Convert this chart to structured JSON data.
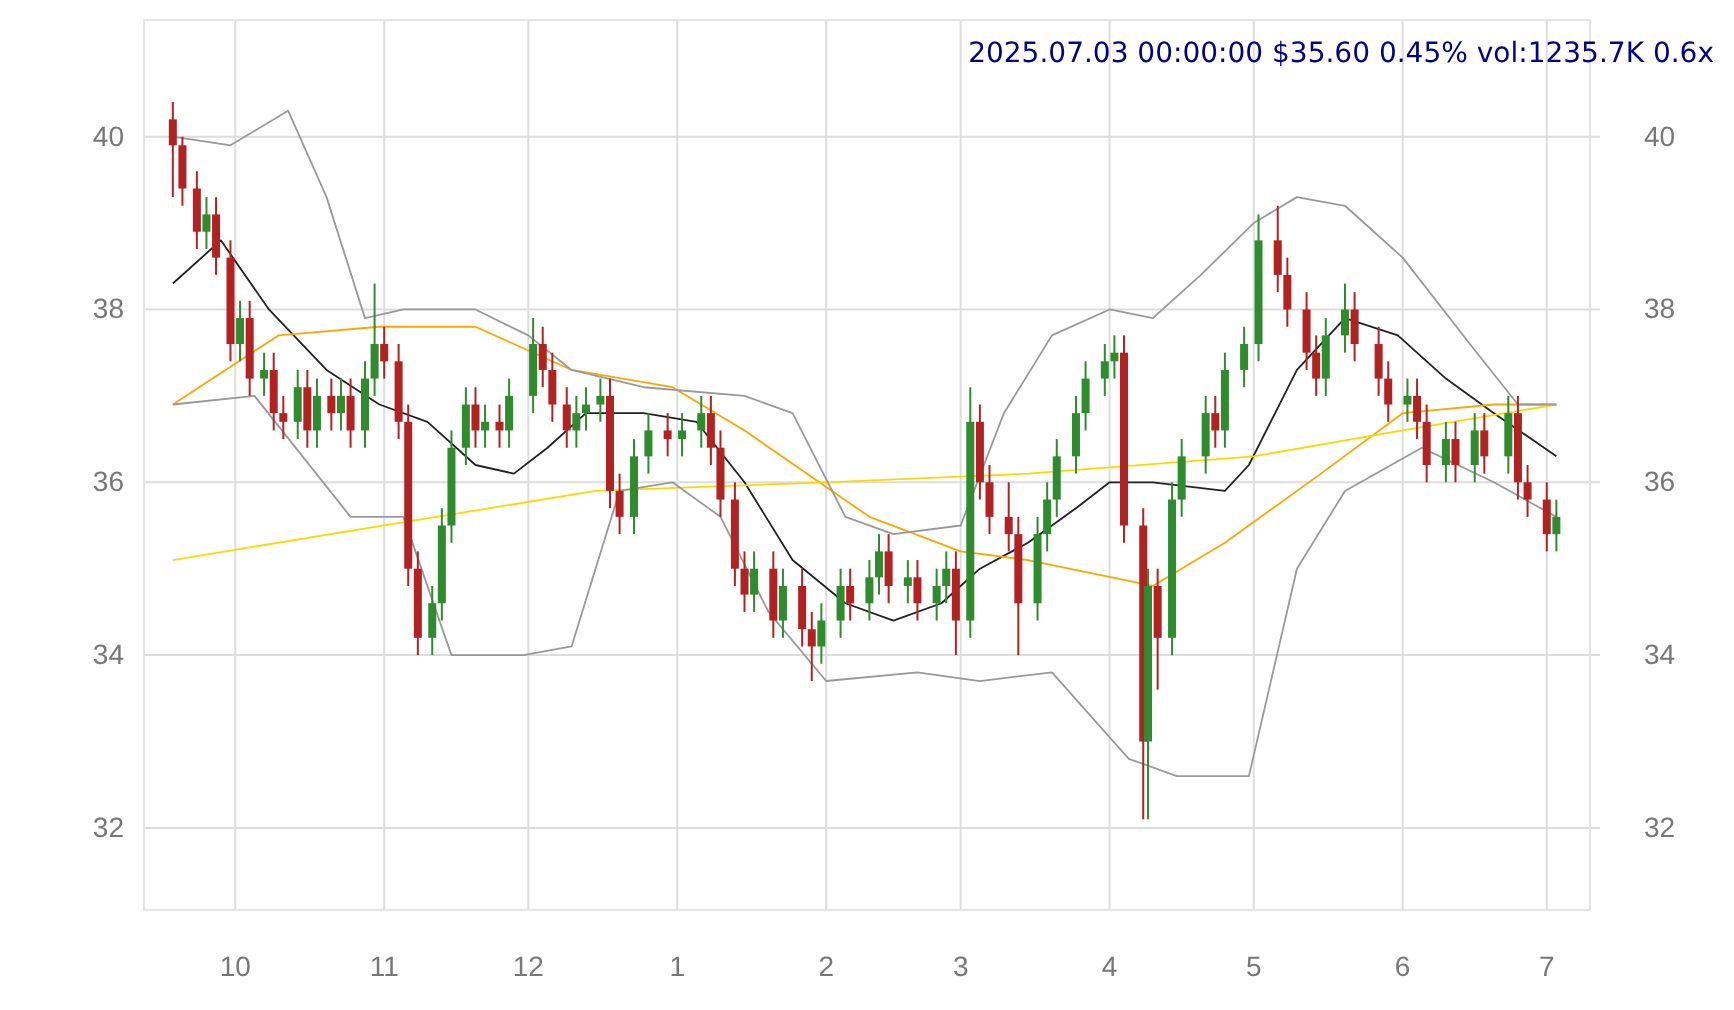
{
  "chart_data": {
    "type": "candlestick",
    "title": "2025.07.03 00:00:00 $35.60 0.45% vol:1235.7K 0.6x",
    "xlim": [
      "2024-09-12",
      "2025-07-10"
    ],
    "xticks": [
      {
        "value": "2024-10-01",
        "label": "10"
      },
      {
        "value": "2024-11-01",
        "label": "11"
      },
      {
        "value": "2024-12-01",
        "label": "12"
      },
      {
        "value": "2025-01-01",
        "label": "1"
      },
      {
        "value": "2025-02-01",
        "label": "2"
      },
      {
        "value": "2025-03-01",
        "label": "3"
      },
      {
        "value": "2025-04-01",
        "label": "4"
      },
      {
        "value": "2025-05-01",
        "label": "5"
      },
      {
        "value": "2025-06-01",
        "label": "6"
      },
      {
        "value": "2025-07-01",
        "label": "7"
      }
    ],
    "ylim": [
      31.05,
      41.35
    ],
    "yticks": [
      32,
      34,
      36,
      38,
      40
    ],
    "y2lim": [
      31.05,
      41.35
    ],
    "y2ticks": [
      32,
      34,
      36,
      38,
      40
    ],
    "grid": true,
    "series": [
      {
        "x": [
          "2024-09-18",
          "2024-09-20",
          "2024-09-23",
          "2024-09-25",
          "2024-09-27",
          "2024-09-30",
          "2024-10-02",
          "2024-10-04",
          "2024-10-07",
          "2024-10-09",
          "2024-10-11",
          "2024-10-14",
          "2024-10-16",
          "2024-10-18",
          "2024-10-21",
          "2024-10-23",
          "2024-10-25",
          "2024-10-28",
          "2024-10-30",
          "2024-11-01",
          "2024-11-04",
          "2024-11-06",
          "2024-11-08",
          "2024-11-11",
          "2024-11-13",
          "2024-11-15",
          "2024-11-18",
          "2024-11-20",
          "2024-11-22",
          "2024-11-25",
          "2024-11-27",
          "2024-12-02",
          "2024-12-04",
          "2024-12-06",
          "2024-12-09",
          "2024-12-11",
          "2024-12-13",
          "2024-12-16",
          "2024-12-18",
          "2024-12-20",
          "2024-12-23",
          "2024-12-26",
          "2024-12-30",
          "2025-01-02",
          "2025-01-06",
          "2025-01-08",
          "2025-01-10",
          "2025-01-13",
          "2025-01-15",
          "2025-01-17",
          "2025-01-21",
          "2025-01-23",
          "2025-01-27",
          "2025-01-29",
          "2025-01-31",
          "2025-02-04",
          "2025-02-06",
          "2025-02-10",
          "2025-02-12",
          "2025-02-14",
          "2025-02-18",
          "2025-02-20",
          "2025-02-24",
          "2025-02-26",
          "2025-02-28",
          "2025-03-03",
          "2025-03-05",
          "2025-03-07",
          "2025-03-11",
          "2025-03-13",
          "2025-03-17",
          "2025-03-19",
          "2025-03-21",
          "2025-03-25",
          "2025-03-27",
          "2025-03-31",
          "2025-04-02",
          "2025-04-04",
          "2025-04-08",
          "2025-04-09",
          "2025-04-11",
          "2025-04-14",
          "2025-04-16",
          "2025-04-21",
          "2025-04-23",
          "2025-04-25",
          "2025-04-29",
          "2025-05-02",
          "2025-05-06",
          "2025-05-08",
          "2025-05-12",
          "2025-05-14",
          "2025-05-16",
          "2025-05-20",
          "2025-05-22",
          "2025-05-27",
          "2025-05-29",
          "2025-06-02",
          "2025-06-04",
          "2025-06-06",
          "2025-06-10",
          "2025-06-12",
          "2025-06-16",
          "2025-06-18",
          "2025-06-23",
          "2025-06-25",
          "2025-06-27",
          "2025-07-01",
          "2025-07-03"
        ],
        "ohlc": [
          [
            40.2,
            40.4,
            39.3,
            39.9
          ],
          [
            39.9,
            40.0,
            39.2,
            39.4
          ],
          [
            39.4,
            39.6,
            38.7,
            38.9
          ],
          [
            38.9,
            39.3,
            38.7,
            39.1
          ],
          [
            39.1,
            39.3,
            38.4,
            38.6
          ],
          [
            38.6,
            38.8,
            37.4,
            37.6
          ],
          [
            37.6,
            38.1,
            37.4,
            37.9
          ],
          [
            37.9,
            38.1,
            37.0,
            37.2
          ],
          [
            37.2,
            37.5,
            37.0,
            37.3
          ],
          [
            37.3,
            37.5,
            36.6,
            36.8
          ],
          [
            36.8,
            37.0,
            36.5,
            36.7
          ],
          [
            36.7,
            37.3,
            36.5,
            37.1
          ],
          [
            37.1,
            37.3,
            36.4,
            36.6
          ],
          [
            36.6,
            37.2,
            36.4,
            37.0
          ],
          [
            37.0,
            37.2,
            36.6,
            36.8
          ],
          [
            36.8,
            37.2,
            36.6,
            37.0
          ],
          [
            37.0,
            37.2,
            36.4,
            36.6
          ],
          [
            36.6,
            37.4,
            36.4,
            37.2
          ],
          [
            37.2,
            38.3,
            37.0,
            37.6
          ],
          [
            37.6,
            37.8,
            37.2,
            37.4
          ],
          [
            37.4,
            37.6,
            36.5,
            36.7
          ],
          [
            36.7,
            36.9,
            34.8,
            35.0
          ],
          [
            35.0,
            35.2,
            34.0,
            34.2
          ],
          [
            34.2,
            34.8,
            34.0,
            34.6
          ],
          [
            34.6,
            35.7,
            34.4,
            35.5
          ],
          [
            35.5,
            36.6,
            35.3,
            36.4
          ],
          [
            36.4,
            37.1,
            36.2,
            36.9
          ],
          [
            36.9,
            37.1,
            36.4,
            36.6
          ],
          [
            36.6,
            36.9,
            36.4,
            36.7
          ],
          [
            36.7,
            36.9,
            36.4,
            36.6
          ],
          [
            36.6,
            37.2,
            36.4,
            37.0
          ],
          [
            37.0,
            37.9,
            36.8,
            37.6
          ],
          [
            37.6,
            37.8,
            37.1,
            37.3
          ],
          [
            37.3,
            37.5,
            36.7,
            36.9
          ],
          [
            36.9,
            37.1,
            36.4,
            36.6
          ],
          [
            36.6,
            37.0,
            36.4,
            36.8
          ],
          [
            36.8,
            37.1,
            36.6,
            36.9
          ],
          [
            36.9,
            37.2,
            36.7,
            37.0
          ],
          [
            37.0,
            37.2,
            35.7,
            35.9
          ],
          [
            35.9,
            36.1,
            35.4,
            35.6
          ],
          [
            35.6,
            36.5,
            35.4,
            36.3
          ],
          [
            36.3,
            36.8,
            36.1,
            36.6
          ],
          [
            36.6,
            36.8,
            36.3,
            36.5
          ],
          [
            36.5,
            36.8,
            36.3,
            36.6
          ],
          [
            36.6,
            37.0,
            36.4,
            36.8
          ],
          [
            36.8,
            37.0,
            36.2,
            36.4
          ],
          [
            36.4,
            36.6,
            35.6,
            35.8
          ],
          [
            35.8,
            36.0,
            34.8,
            35.0
          ],
          [
            35.0,
            35.2,
            34.5,
            34.7
          ],
          [
            34.7,
            35.2,
            34.5,
            35.0
          ],
          [
            35.0,
            35.2,
            34.2,
            34.4
          ],
          [
            34.4,
            35.0,
            34.2,
            34.8
          ],
          [
            34.8,
            35.0,
            34.1,
            34.3
          ],
          [
            34.3,
            34.5,
            33.7,
            34.1
          ],
          [
            34.1,
            34.6,
            33.9,
            34.4
          ],
          [
            34.4,
            35.0,
            34.2,
            34.8
          ],
          [
            34.8,
            35.0,
            34.4,
            34.6
          ],
          [
            34.6,
            35.1,
            34.4,
            34.9
          ],
          [
            34.9,
            35.4,
            34.7,
            35.2
          ],
          [
            35.2,
            35.4,
            34.6,
            34.8
          ],
          [
            34.8,
            35.1,
            34.6,
            34.9
          ],
          [
            34.9,
            35.1,
            34.4,
            34.6
          ],
          [
            34.6,
            35.0,
            34.4,
            34.8
          ],
          [
            34.8,
            35.2,
            34.6,
            35.0
          ],
          [
            35.0,
            35.2,
            34.0,
            34.4
          ],
          [
            34.4,
            37.1,
            34.2,
            36.7
          ],
          [
            36.7,
            36.9,
            35.8,
            36.0
          ],
          [
            36.0,
            36.2,
            35.4,
            35.6
          ],
          [
            35.6,
            36.0,
            35.2,
            35.4
          ],
          [
            35.4,
            35.6,
            34.0,
            34.6
          ],
          [
            34.6,
            35.6,
            34.4,
            35.4
          ],
          [
            35.4,
            36.0,
            35.2,
            35.8
          ],
          [
            35.8,
            36.5,
            35.6,
            36.3
          ],
          [
            36.3,
            37.0,
            36.1,
            36.8
          ],
          [
            36.8,
            37.4,
            36.6,
            37.2
          ],
          [
            37.2,
            37.6,
            37.0,
            37.4
          ],
          [
            37.4,
            37.7,
            37.2,
            37.5
          ],
          [
            37.5,
            37.7,
            35.3,
            35.5
          ],
          [
            35.5,
            35.7,
            32.1,
            33.0
          ],
          [
            33.0,
            35.0,
            32.1,
            34.8
          ],
          [
            34.8,
            35.0,
            33.6,
            34.2
          ],
          [
            34.2,
            36.0,
            34.0,
            35.8
          ],
          [
            35.8,
            36.5,
            35.6,
            36.3
          ],
          [
            36.3,
            37.0,
            36.1,
            36.8
          ],
          [
            36.8,
            37.0,
            36.4,
            36.6
          ],
          [
            36.6,
            37.5,
            36.4,
            37.3
          ],
          [
            37.3,
            37.8,
            37.1,
            37.6
          ],
          [
            37.6,
            39.1,
            37.4,
            38.8
          ],
          [
            38.8,
            39.2,
            38.2,
            38.4
          ],
          [
            38.4,
            38.6,
            37.8,
            38.0
          ],
          [
            38.0,
            38.2,
            37.3,
            37.5
          ],
          [
            37.5,
            37.7,
            37.0,
            37.2
          ],
          [
            37.2,
            37.9,
            37.0,
            37.7
          ],
          [
            37.7,
            38.3,
            37.5,
            38.0
          ],
          [
            38.0,
            38.2,
            37.4,
            37.6
          ],
          [
            37.6,
            37.8,
            37.0,
            37.2
          ],
          [
            37.2,
            37.4,
            36.7,
            36.9
          ],
          [
            36.9,
            37.2,
            36.7,
            37.0
          ],
          [
            37.0,
            37.2,
            36.5,
            36.7
          ],
          [
            36.7,
            36.9,
            36.0,
            36.2
          ],
          [
            36.2,
            36.7,
            36.0,
            36.5
          ],
          [
            36.5,
            36.7,
            36.0,
            36.2
          ],
          [
            36.2,
            36.8,
            36.0,
            36.6
          ],
          [
            36.6,
            36.8,
            36.1,
            36.3
          ],
          [
            36.3,
            37.0,
            36.1,
            36.8
          ],
          [
            36.8,
            37.0,
            35.8,
            36.0
          ],
          [
            36.0,
            36.2,
            35.6,
            35.8
          ],
          [
            35.8,
            36.0,
            35.2,
            35.4
          ],
          [
            35.4,
            35.8,
            35.2,
            35.6
          ]
        ],
        "colors": [
          "#b22222",
          "#b22222",
          "#b22222",
          "#2e8b2e",
          "#b22222",
          "#b22222",
          "#2e8b2e",
          "#b22222",
          "#2e8b2e",
          "#b22222",
          "#b22222",
          "#2e8b2e",
          "#b22222",
          "#2e8b2e",
          "#b22222",
          "#2e8b2e",
          "#b22222",
          "#2e8b2e",
          "#2e8b2e",
          "#b22222",
          "#b22222",
          "#b22222",
          "#b22222",
          "#2e8b2e",
          "#2e8b2e",
          "#2e8b2e",
          "#2e8b2e",
          "#b22222",
          "#2e8b2e",
          "#b22222",
          "#2e8b2e",
          "#2e8b2e",
          "#b22222",
          "#b22222",
          "#b22222",
          "#2e8b2e",
          "#2e8b2e",
          "#2e8b2e",
          "#b22222",
          "#b22222",
          "#2e8b2e",
          "#2e8b2e",
          "#b22222",
          "#2e8b2e",
          "#2e8b2e",
          "#b22222",
          "#b22222",
          "#b22222",
          "#b22222",
          "#2e8b2e",
          "#b22222",
          "#2e8b2e",
          "#b22222",
          "#b22222",
          "#2e8b2e",
          "#2e8b2e",
          "#b22222",
          "#2e8b2e",
          "#2e8b2e",
          "#b22222",
          "#2e8b2e",
          "#b22222",
          "#2e8b2e",
          "#2e8b2e",
          "#b22222",
          "#2e8b2e",
          "#b22222",
          "#b22222",
          "#b22222",
          "#b22222",
          "#2e8b2e",
          "#2e8b2e",
          "#2e8b2e",
          "#2e8b2e",
          "#2e8b2e",
          "#2e8b2e",
          "#2e8b2e",
          "#b22222",
          "#b22222",
          "#2e8b2e",
          "#b22222",
          "#2e8b2e",
          "#2e8b2e",
          "#2e8b2e",
          "#b22222",
          "#2e8b2e",
          "#2e8b2e",
          "#2e8b2e",
          "#b22222",
          "#b22222",
          "#b22222",
          "#b22222",
          "#2e8b2e",
          "#2e8b2e",
          "#b22222",
          "#b22222",
          "#b22222",
          "#2e8b2e",
          "#b22222",
          "#b22222",
          "#2e8b2e",
          "#b22222",
          "#2e8b2e",
          "#b22222",
          "#2e8b2e",
          "#b22222",
          "#b22222",
          "#b22222",
          "#2e8b2e"
        ]
      },
      {
        "type": "line",
        "color": "#222222",
        "x": [
          "2024-09-18",
          "2024-09-28",
          "2024-10-08",
          "2024-10-20",
          "2024-10-31",
          "2024-11-10",
          "2024-11-20",
          "2024-11-28",
          "2024-12-05",
          "2024-12-13",
          "2024-12-25",
          "2025-01-05",
          "2025-01-15",
          "2025-01-25",
          "2025-02-05",
          "2025-02-15",
          "2025-02-25",
          "2025-03-05",
          "2025-03-15",
          "2025-03-25",
          "2025-04-01",
          "2025-04-10",
          "2025-04-25",
          "2025-04-30",
          "2025-05-10",
          "2025-05-20",
          "2025-05-31",
          "2025-06-10",
          "2025-06-20",
          "2025-07-03"
        ],
        "values": [
          38.3,
          38.8,
          38.0,
          37.3,
          36.9,
          36.7,
          36.2,
          36.1,
          36.4,
          36.8,
          36.8,
          36.7,
          36.0,
          35.1,
          34.6,
          34.4,
          34.6,
          35.0,
          35.3,
          35.7,
          36.0,
          36.0,
          35.9,
          36.2,
          37.3,
          37.9,
          37.7,
          37.2,
          36.8,
          36.3
        ]
      },
      {
        "type": "line",
        "color": "#ffa500",
        "x": [
          "2024-09-18",
          "2024-10-10",
          "2024-10-31",
          "2024-11-20",
          "2024-12-10",
          "2024-12-31",
          "2025-01-15",
          "2025-02-10",
          "2025-03-01",
          "2025-03-15",
          "2025-04-10",
          "2025-04-25",
          "2025-05-15",
          "2025-06-01",
          "2025-06-20",
          "2025-07-03"
        ],
        "values": [
          36.9,
          37.7,
          37.8,
          37.8,
          37.3,
          37.1,
          36.6,
          35.6,
          35.2,
          35.1,
          34.8,
          35.3,
          36.1,
          36.8,
          36.9,
          36.9
        ]
      },
      {
        "type": "line",
        "color": "#ffd700",
        "x": [
          "2024-09-18",
          "2024-11-01",
          "2024-12-15",
          "2025-02-01",
          "2025-03-15",
          "2025-05-01",
          "2025-06-01",
          "2025-07-03"
        ],
        "values": [
          35.1,
          35.5,
          35.9,
          36.0,
          36.1,
          36.3,
          36.6,
          36.9
        ]
      },
      {
        "type": "line",
        "color": "#999999",
        "x": [
          "2024-09-18",
          "2024-09-30",
          "2024-10-12",
          "2024-10-20",
          "2024-10-28",
          "2024-11-05",
          "2024-11-20",
          "2024-12-01",
          "2024-12-10",
          "2024-12-25",
          "2025-01-15",
          "2025-01-25",
          "2025-02-05",
          "2025-02-15",
          "2025-03-01",
          "2025-03-10",
          "2025-03-20",
          "2025-04-01",
          "2025-04-10",
          "2025-04-20",
          "2025-05-01",
          "2025-05-10",
          "2025-05-20",
          "2025-06-01",
          "2025-06-15",
          "2025-06-25",
          "2025-07-03"
        ],
        "values": [
          40.0,
          39.9,
          40.3,
          39.3,
          37.9,
          38.0,
          38.0,
          37.7,
          37.3,
          37.1,
          37.0,
          36.8,
          35.6,
          35.4,
          35.5,
          36.8,
          37.7,
          38.0,
          37.9,
          38.4,
          39.0,
          39.3,
          39.2,
          38.6,
          37.6,
          36.9,
          36.9
        ]
      },
      {
        "type": "line",
        "color": "#999999",
        "x": [
          "2024-09-18",
          "2024-10-05",
          "2024-10-15",
          "2024-10-25",
          "2024-11-05",
          "2024-11-15",
          "2024-11-30",
          "2024-12-10",
          "2024-12-20",
          "2024-12-31",
          "2025-01-10",
          "2025-01-20",
          "2025-02-01",
          "2025-02-20",
          "2025-03-05",
          "2025-03-20",
          "2025-04-05",
          "2025-04-15",
          "2025-04-30",
          "2025-05-10",
          "2025-05-20",
          "2025-06-05",
          "2025-06-20",
          "2025-07-03"
        ],
        "values": [
          36.9,
          37.0,
          36.3,
          35.6,
          35.6,
          34.0,
          34.0,
          34.1,
          35.9,
          36.0,
          35.6,
          34.5,
          33.7,
          33.8,
          33.7,
          33.8,
          32.8,
          32.6,
          32.6,
          35.0,
          35.9,
          36.4,
          36.0,
          35.6
        ]
      }
    ]
  }
}
